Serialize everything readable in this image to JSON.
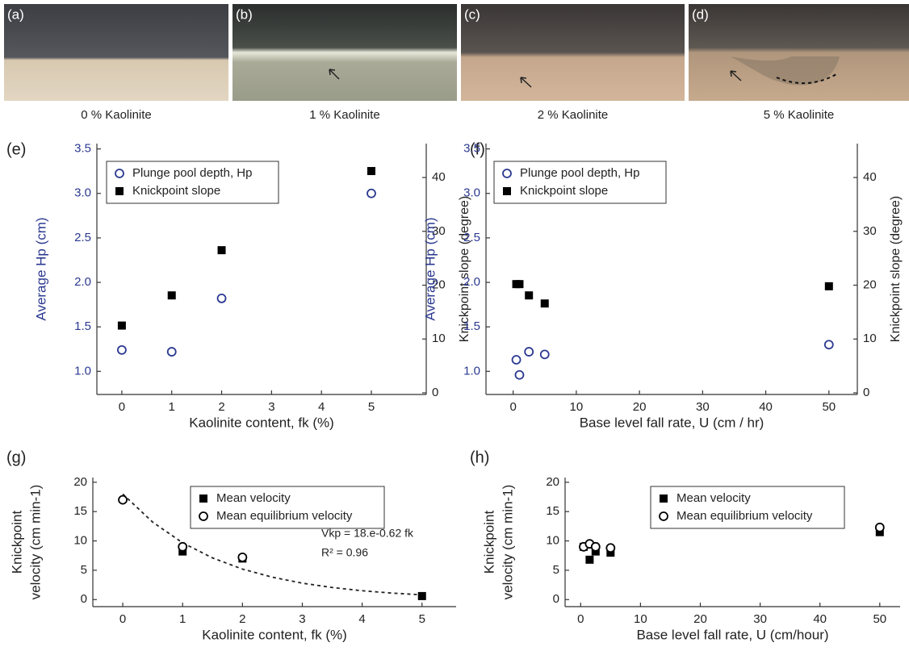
{
  "photos": [
    {
      "label": "(a)",
      "caption": "0 % Kaolinite"
    },
    {
      "label": "(b)",
      "caption": "1 % Kaolinite"
    },
    {
      "label": "(c)",
      "caption": "2 % Kaolinite"
    },
    {
      "label": "(d)",
      "caption": "5 % Kaolinite"
    }
  ],
  "chart_data": [
    {
      "type": "scatter",
      "panel": "(e)",
      "xlabel": "Kaolinite content, fk (%)",
      "ylabel": [
        "Average Hp (cm)"
      ],
      "y2label": "Knickpoint slope (degree)",
      "ycolor": "#2b3990",
      "x": [
        0,
        1,
        2,
        5
      ],
      "xlim": [
        -0.5,
        6.1
      ],
      "xticks": [
        0,
        1,
        2,
        3,
        4,
        5
      ],
      "ylim": [
        0.74,
        3.56
      ],
      "yticks": [
        {
          "value": 1.0,
          "label": "1.0"
        },
        1.5,
        {
          "value": 2.0,
          "label": "2.0"
        },
        2.5,
        {
          "value": 3.0,
          "label": "3.0"
        },
        3.5
      ],
      "y2lim": [
        -0.3,
        46.3
      ],
      "y2ticks": [
        0,
        10,
        20,
        30,
        40
      ],
      "legend": "top-left",
      "series": [
        {
          "name": "Plunge pool depth, Hp",
          "color": "#2b3990",
          "marker": "circle",
          "axis": "y",
          "values": [
            1.24,
            1.22,
            1.82,
            3.0
          ]
        },
        {
          "name": "Knickpoint slope",
          "color": "#000000",
          "marker": "square",
          "axis": "y2",
          "values": [
            12.5,
            18.1,
            26.5,
            41.2
          ]
        }
      ]
    },
    {
      "type": "scatter",
      "panel": "(f)",
      "xlabel": "Base level fall rate, U (cm / hr)",
      "ylabel": [
        "Average Hp (cm)"
      ],
      "y2label": "Knickpoint slope (degree)",
      "ycolor": "#2b3990",
      "x": [
        0.5,
        1,
        2.5,
        5,
        50
      ],
      "xlim": [
        -4.3,
        54.5
      ],
      "xticks": [
        0,
        10,
        20,
        30,
        40,
        50
      ],
      "ylim": [
        0.74,
        3.56
      ],
      "yticks": [
        {
          "value": 1.0,
          "label": "1.0"
        },
        1.5,
        {
          "value": 2.0,
          "label": "2.0"
        },
        2.5,
        {
          "value": 3.0,
          "label": "3.0"
        },
        3.5
      ],
      "y2lim": [
        -0.3,
        46.3
      ],
      "y2ticks": [
        0,
        10,
        20,
        30,
        40
      ],
      "legend": "top-left",
      "series": [
        {
          "name": "Plunge pool depth, Hp",
          "color": "#2b3990",
          "marker": "circle",
          "axis": "y",
          "values": [
            1.13,
            0.96,
            1.22,
            1.19,
            1.3
          ]
        },
        {
          "name": "Knickpoint slope",
          "color": "#000000",
          "marker": "square",
          "axis": "y2",
          "values": [
            20.2,
            20.2,
            18.1,
            16.6,
            19.8
          ]
        }
      ]
    },
    {
      "type": "scatter",
      "panel": "(g)",
      "xlabel": "Kaolinite content, fk (%)",
      "ylabel": [
        "Knickpoint",
        "velocity (cm min-1)"
      ],
      "ycolor": "#222222",
      "x": [
        0,
        1,
        2,
        5
      ],
      "xlim": [
        -0.5,
        5.57
      ],
      "xticks": [
        0,
        1,
        2,
        3,
        4,
        5
      ],
      "ylim": [
        -1.2,
        20.8
      ],
      "yticks": [
        0,
        5,
        10,
        15,
        20
      ],
      "legend": "top-right",
      "series": [
        {
          "name": "Mean velocity",
          "color": "#000000",
          "marker": "square",
          "axis": "y",
          "values": [
            null,
            8.2,
            7.0,
            0.6
          ]
        },
        {
          "name": "Mean equilibrium velocity",
          "color": "#000000",
          "marker": "circle",
          "axis": "y",
          "values": [
            17.0,
            9.0,
            7.2,
            null
          ]
        }
      ],
      "fit": {
        "x": [
          0,
          0.5,
          1,
          1.5,
          2,
          2.5,
          3,
          3.5,
          4,
          4.5,
          5
        ],
        "values": [
          18,
          13.2,
          9.68,
          7.1,
          5.2,
          3.82,
          2.8,
          2.06,
          1.51,
          1.11,
          0.81
        ]
      },
      "annotations": [
        "Vkp = 18.e-0.62 fk",
        "R² = 0.96"
      ]
    },
    {
      "type": "scatter",
      "panel": "(h)",
      "xlabel": "Base level fall rate, U (cm/hour)",
      "ylabel": [
        "Knickpoint",
        "velocity (cm min-1)"
      ],
      "ycolor": "#222222",
      "x": [
        0.5,
        1.5,
        2.5,
        5,
        50
      ],
      "xlim": [
        -2.6,
        53.4
      ],
      "xticks": [
        0,
        10,
        20,
        30,
        40,
        50
      ],
      "ylim": [
        -1.2,
        20.8
      ],
      "yticks": [
        0,
        5,
        10,
        15,
        20
      ],
      "legend": "top-right",
      "series": [
        {
          "name": "Mean velocity",
          "color": "#000000",
          "marker": "square",
          "axis": "y",
          "values": [
            9.0,
            6.8,
            8.2,
            8.0,
            11.5
          ]
        },
        {
          "name": "Mean equilibrium velocity",
          "color": "#000000",
          "marker": "circle",
          "axis": "y",
          "values": [
            9.0,
            9.5,
            9.0,
            8.8,
            12.3
          ]
        }
      ]
    }
  ]
}
